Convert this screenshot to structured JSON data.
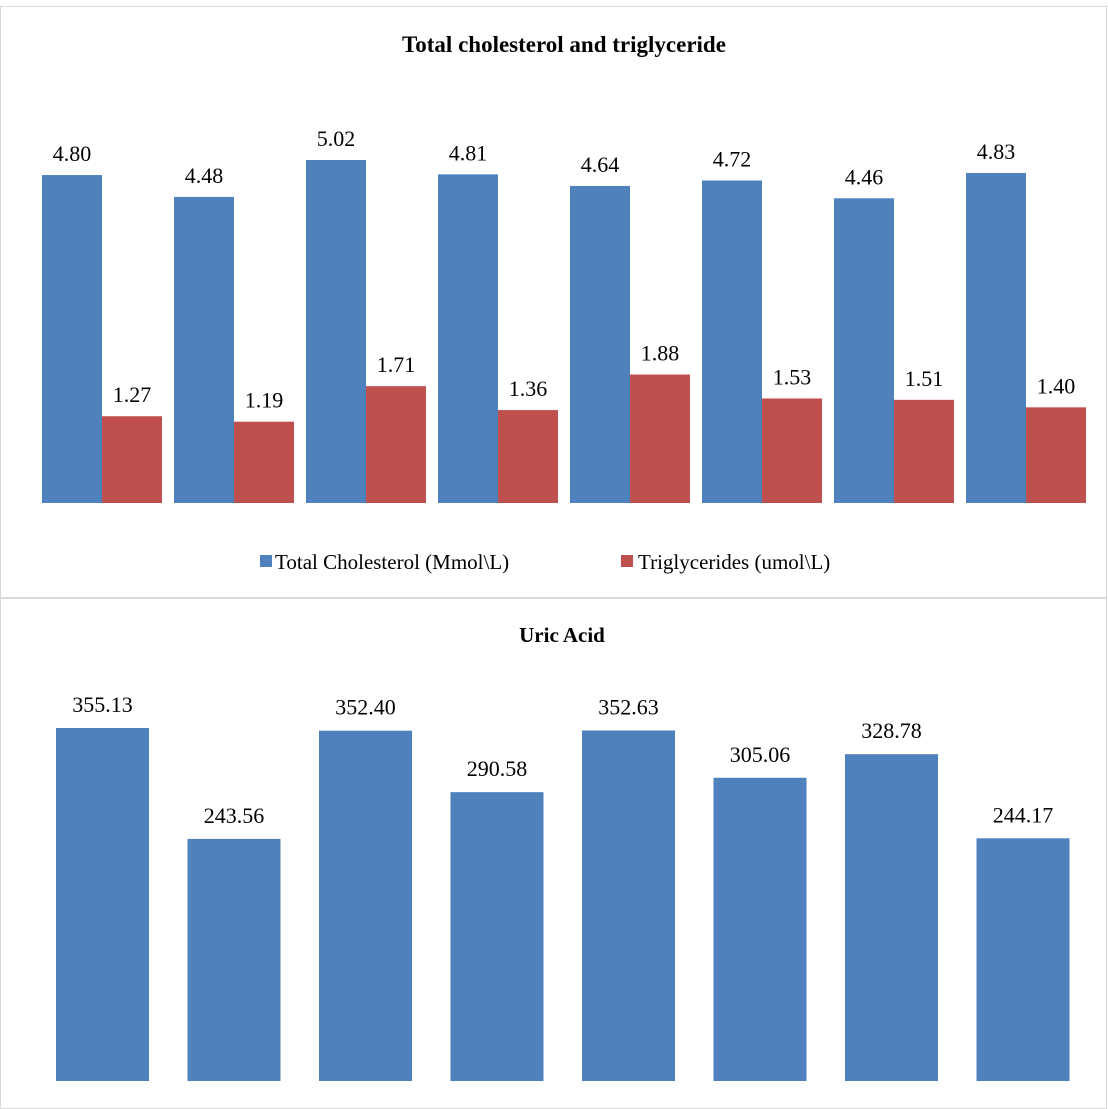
{
  "colors": {
    "blue": "#4F81BD",
    "red": "#C0504D",
    "panel_border": "#D9D9D9",
    "text": "#000000"
  },
  "chart_data": [
    {
      "type": "bar",
      "title": "Total cholesterol and triglyceride",
      "categories": [
        "",
        "",
        "",
        "",
        "",
        "",
        "",
        ""
      ],
      "series": [
        {
          "name": "Total Cholesterol (Mmol\\L)",
          "color": "#4F81BD",
          "values": [
            4.8,
            4.48,
            5.02,
            4.81,
            4.64,
            4.72,
            4.46,
            4.83
          ],
          "labels": [
            "4.80",
            "4.48",
            "5.02",
            "4.81",
            "4.64",
            "4.72",
            "4.46",
            "4.83"
          ]
        },
        {
          "name": "Triglycerides (umol\\L)",
          "color": "#C0504D",
          "values": [
            1.27,
            1.19,
            1.71,
            1.36,
            1.88,
            1.53,
            1.51,
            1.4
          ],
          "labels": [
            "1.27",
            "1.19",
            "1.71",
            "1.36",
            "1.88",
            "1.53",
            "1.51",
            "1.40"
          ]
        }
      ],
      "ylim": [
        0,
        5.02
      ],
      "grid": false,
      "legend": "bottom"
    },
    {
      "type": "bar",
      "title": "Uric Acid",
      "categories": [
        "",
        "",
        "",
        "",
        "",
        "",
        "",
        ""
      ],
      "series": [
        {
          "color": "#4F81BD",
          "values": [
            355.13,
            243.56,
            352.4,
            290.58,
            352.63,
            305.06,
            328.78,
            244.17
          ],
          "labels": [
            "355.13",
            "243.56",
            "352.40",
            "290.58",
            "352.63",
            "305.06",
            "328.78",
            "244.17"
          ]
        }
      ],
      "ylim": [
        0,
        355.13
      ],
      "grid": false,
      "legend": "none"
    }
  ]
}
